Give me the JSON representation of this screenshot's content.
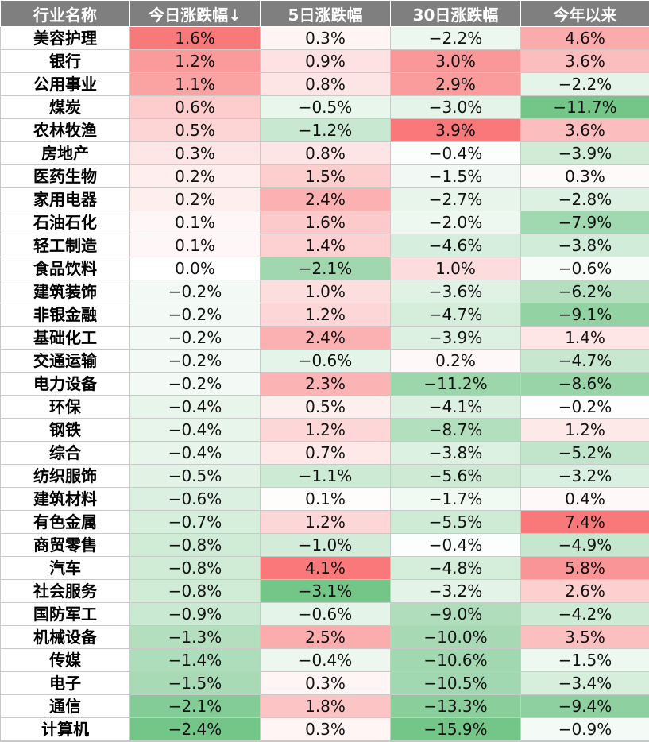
{
  "table": {
    "columns": [
      "行业名称",
      "今日涨跌幅↓",
      "5日涨跌幅",
      "30日涨跌幅",
      "今年以来"
    ],
    "rows": [
      {
        "name": "美容护理",
        "values": [
          "1.6%",
          "0.3%",
          "−2.2%",
          "4.6%"
        ]
      },
      {
        "name": "银行",
        "values": [
          "1.2%",
          "0.9%",
          "3.0%",
          "3.6%"
        ]
      },
      {
        "name": "公用事业",
        "values": [
          "1.1%",
          "0.8%",
          "2.9%",
          "−2.2%"
        ]
      },
      {
        "name": "煤炭",
        "values": [
          "0.6%",
          "−0.5%",
          "−3.0%",
          "−11.7%"
        ]
      },
      {
        "name": "农林牧渔",
        "values": [
          "0.5%",
          "−1.2%",
          "3.9%",
          "3.6%"
        ]
      },
      {
        "name": "房地产",
        "values": [
          "0.3%",
          "0.8%",
          "−0.4%",
          "−3.9%"
        ]
      },
      {
        "name": "医药生物",
        "values": [
          "0.2%",
          "1.5%",
          "−1.5%",
          "0.3%"
        ]
      },
      {
        "name": "家用电器",
        "values": [
          "0.2%",
          "2.4%",
          "−2.7%",
          "−2.8%"
        ]
      },
      {
        "name": "石油石化",
        "values": [
          "0.1%",
          "1.6%",
          "−2.0%",
          "−7.9%"
        ]
      },
      {
        "name": "轻工制造",
        "values": [
          "0.1%",
          "1.4%",
          "−4.6%",
          "−3.8%"
        ]
      },
      {
        "name": "食品饮料",
        "values": [
          "0.0%",
          "−2.1%",
          "1.0%",
          "−0.6%"
        ]
      },
      {
        "name": "建筑装饰",
        "values": [
          "−0.2%",
          "1.0%",
          "−3.6%",
          "−6.2%"
        ]
      },
      {
        "name": "非银金融",
        "values": [
          "−0.2%",
          "1.2%",
          "−4.7%",
          "−9.1%"
        ]
      },
      {
        "name": "基础化工",
        "values": [
          "−0.2%",
          "2.4%",
          "−3.9%",
          "1.4%"
        ]
      },
      {
        "name": "交通运输",
        "values": [
          "−0.2%",
          "−0.6%",
          "0.2%",
          "−4.7%"
        ]
      },
      {
        "name": "电力设备",
        "values": [
          "−0.2%",
          "2.3%",
          "−11.2%",
          "−8.6%"
        ]
      },
      {
        "name": "环保",
        "values": [
          "−0.4%",
          "0.5%",
          "−4.1%",
          "−0.2%"
        ]
      },
      {
        "name": "钢铁",
        "values": [
          "−0.4%",
          "1.2%",
          "−8.7%",
          "1.2%"
        ]
      },
      {
        "name": "综合",
        "values": [
          "−0.4%",
          "0.7%",
          "−3.8%",
          "−5.2%"
        ]
      },
      {
        "name": "纺织服饰",
        "values": [
          "−0.5%",
          "−1.1%",
          "−5.6%",
          "−3.2%"
        ]
      },
      {
        "name": "建筑材料",
        "values": [
          "−0.6%",
          "0.1%",
          "−1.7%",
          "0.4%"
        ]
      },
      {
        "name": "有色金属",
        "values": [
          "−0.7%",
          "1.2%",
          "−5.5%",
          "7.4%"
        ]
      },
      {
        "name": "商贸零售",
        "values": [
          "−0.8%",
          "−1.0%",
          "−0.4%",
          "−4.9%"
        ]
      },
      {
        "name": "汽车",
        "values": [
          "−0.8%",
          "4.1%",
          "−4.8%",
          "5.8%"
        ]
      },
      {
        "name": "社会服务",
        "values": [
          "−0.8%",
          "−3.1%",
          "−3.2%",
          "2.6%"
        ]
      },
      {
        "name": "国防军工",
        "values": [
          "−0.9%",
          "−0.6%",
          "−9.0%",
          "−4.2%"
        ]
      },
      {
        "name": "机械设备",
        "values": [
          "−1.3%",
          "2.5%",
          "−10.0%",
          "3.5%"
        ]
      },
      {
        "name": "传媒",
        "values": [
          "−1.4%",
          "−0.4%",
          "−10.6%",
          "−1.5%"
        ]
      },
      {
        "name": "电子",
        "values": [
          "−1.5%",
          "0.3%",
          "−10.5%",
          "−3.4%"
        ]
      },
      {
        "name": "通信",
        "values": [
          "−2.1%",
          "1.8%",
          "−13.3%",
          "−9.4%"
        ]
      },
      {
        "name": "计算机",
        "values": [
          "−2.4%",
          "0.3%",
          "−15.9%",
          "−0.9%"
        ]
      }
    ]
  },
  "colors": {
    "header_bg": "#7f7f7f",
    "header_text": "#ffffff",
    "positive": "#f8696b",
    "negative": "#63be7b",
    "neutral": "#ffffff",
    "border": "#c9c9c9"
  }
}
